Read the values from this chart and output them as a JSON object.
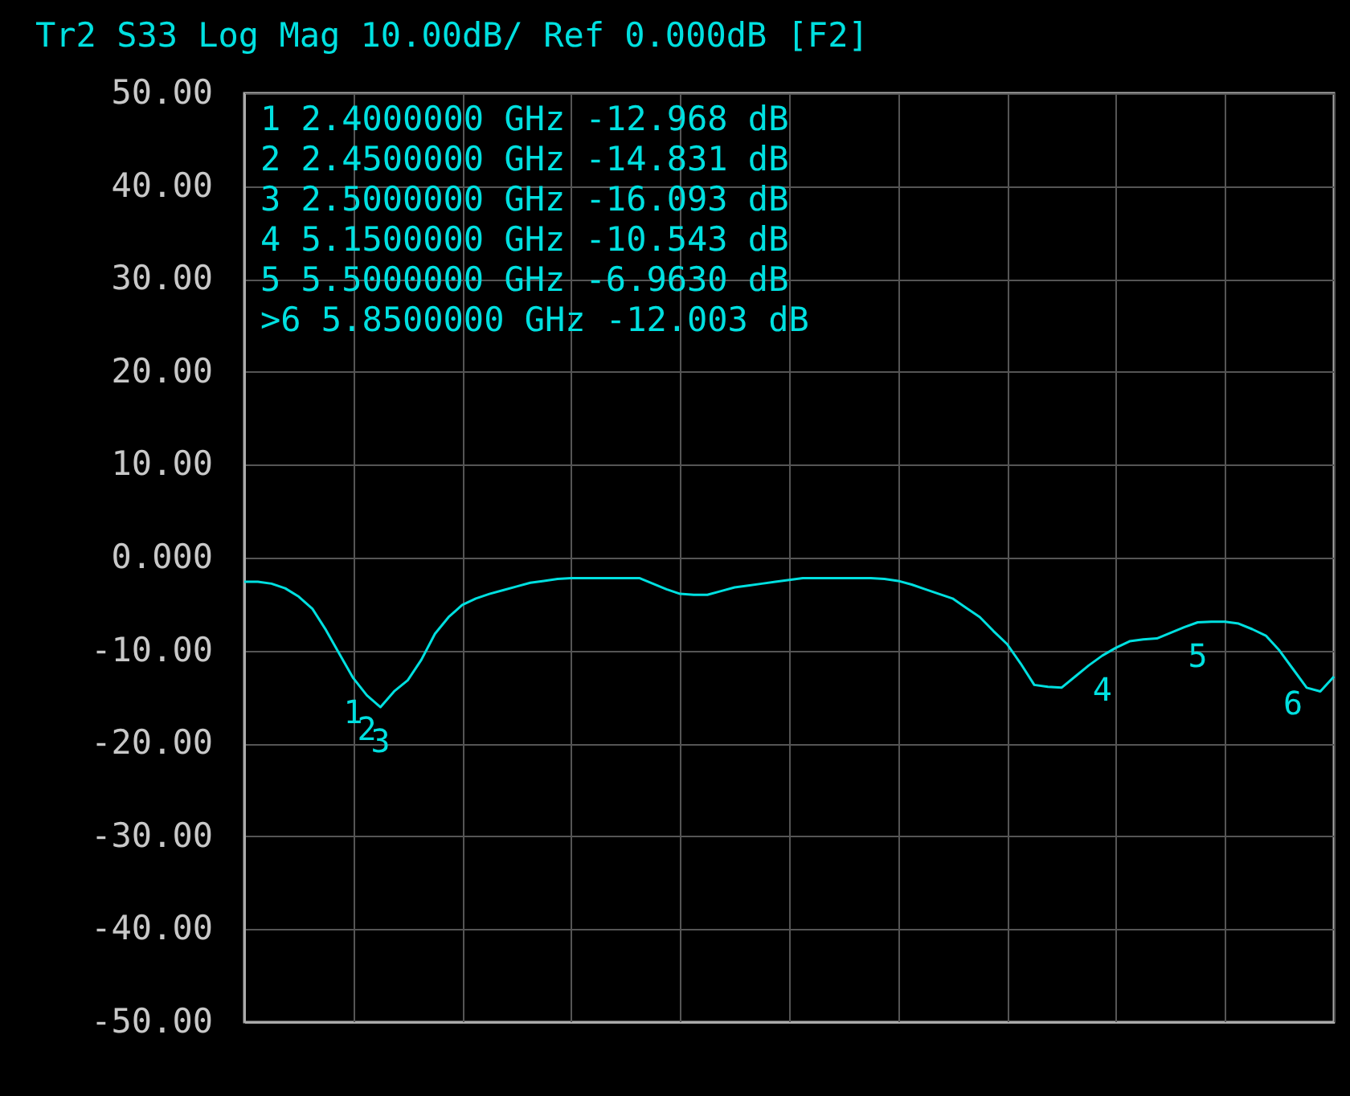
{
  "chart_data": {
    "type": "line",
    "title": "Tr2 S33 Log Mag 10.00dB/ Ref 0.000dB [F2]",
    "categories": [
      null,
      null,
      null,
      null,
      null,
      null,
      null,
      null,
      null,
      null,
      null,
      null,
      null,
      null,
      null,
      null,
      null,
      null,
      null,
      null,
      null,
      null,
      null,
      null,
      null,
      null,
      null,
      null,
      null,
      null,
      null,
      null,
      null,
      null,
      null,
      null,
      null,
      null,
      null,
      null,
      null,
      null,
      null,
      null,
      null,
      null,
      null,
      null,
      null,
      null,
      null,
      null,
      null,
      null,
      null,
      null,
      null,
      null,
      null,
      null,
      null,
      null,
      null,
      null,
      null,
      null,
      null,
      null,
      null,
      null,
      null,
      null,
      null,
      null,
      null,
      null,
      null,
      null,
      null,
      null,
      null
    ],
    "series": [
      {
        "color": "#00e0e0",
        "values": [
          -2.6,
          -2.6,
          -2.8,
          -3.3,
          -4.2,
          -5.5,
          -7.8,
          -10.4,
          -12.968,
          -14.831,
          -16.093,
          -14.4,
          -13.2,
          -11.0,
          -8.2,
          -6.4,
          -5.1,
          -4.4,
          -3.9,
          -3.5,
          -3.1,
          -2.7,
          -2.5,
          -2.3,
          -2.2,
          -2.2,
          -2.2,
          -2.2,
          -2.2,
          -2.2,
          -2.8,
          -3.4,
          -3.9,
          -4.0,
          -4.0,
          -3.6,
          -3.2,
          -3.0,
          -2.8,
          -2.6,
          -2.4,
          -2.2,
          -2.2,
          -2.2,
          -2.2,
          -2.2,
          -2.2,
          -2.3,
          -2.5,
          -2.9,
          -3.4,
          -3.9,
          -4.4,
          -5.4,
          -6.4,
          -7.9,
          -9.3,
          -11.4,
          -13.7,
          -13.9,
          -14.0,
          -12.8,
          -11.6,
          -10.543,
          -9.7,
          -9.0,
          -8.8,
          -8.7,
          -8.1,
          -7.5,
          -6.963,
          -6.9,
          -6.9,
          -7.1,
          -7.7,
          -8.4,
          -10.0,
          -12.003,
          -14.0,
          -14.4,
          -12.8
        ]
      }
    ],
    "ylim": [
      -50,
      50
    ],
    "yticks": [
      {
        "value": 50,
        "label": "50.00"
      },
      {
        "value": 40,
        "label": "40.00"
      },
      {
        "value": 30,
        "label": "30.00"
      },
      {
        "value": 20,
        "label": "20.00"
      },
      {
        "value": 10,
        "label": "10.00"
      },
      {
        "value": 0,
        "label": "0.000"
      },
      {
        "value": -10,
        "label": "-10.00"
      },
      {
        "value": -20,
        "label": "-20.00"
      },
      {
        "value": -30,
        "label": "-30.00"
      },
      {
        "value": -40,
        "label": "-40.00"
      },
      {
        "value": -50,
        "label": "-50.00"
      }
    ],
    "tick_labels": "y",
    "grid": true,
    "legend": false,
    "marker": "none",
    "line_style": "solid",
    "annotations": [
      "1   2.4000000 GHz -12.968  dB",
      "2   2.4500000 GHz -14.831  dB",
      "3   2.5000000 GHz -16.093  dB",
      "4   5.1500000 GHz -10.543  dB",
      "5   5.5000000 GHz -6.9630  dB",
      ">6  5.8500000 GHz -12.003  dB",
      {
        "text": "1",
        "y": -12.968
      },
      {
        "text": "2",
        "y": -14.831
      },
      {
        "text": "3",
        "y": -16.093
      },
      {
        "text": "4",
        "y": -10.543
      },
      {
        "text": "5",
        "y": -6.963
      },
      {
        "text": "6",
        "y": -12.003
      }
    ]
  }
}
